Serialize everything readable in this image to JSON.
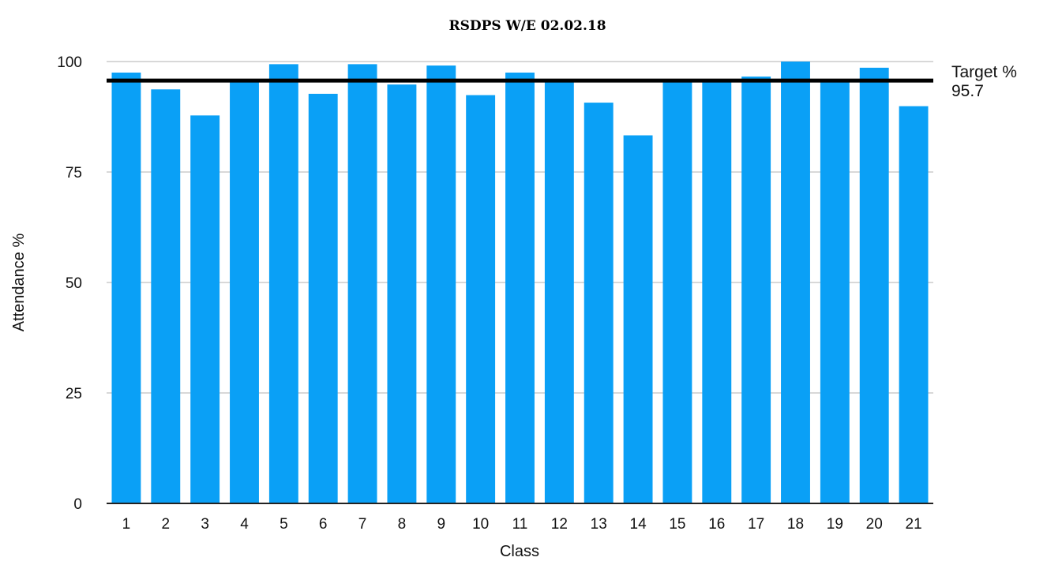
{
  "chart_data": {
    "type": "bar",
    "title": "RSDPS W/E 02.02.18",
    "xlabel": "Class",
    "ylabel": "Attendance %",
    "categories": [
      "1",
      "2",
      "3",
      "4",
      "5",
      "6",
      "7",
      "8",
      "9",
      "10",
      "11",
      "12",
      "13",
      "14",
      "15",
      "16",
      "17",
      "18",
      "19",
      "20",
      "21"
    ],
    "values": [
      97.5,
      93.7,
      87.8,
      95.7,
      99.4,
      92.7,
      99.4,
      94.8,
      99.1,
      92.4,
      97.5,
      95.7,
      90.7,
      83.3,
      95.7,
      95.7,
      96.6,
      100,
      95.7,
      98.6,
      89.9
    ],
    "ylim": [
      0,
      100
    ],
    "yticks": [
      0,
      25,
      50,
      75,
      100
    ],
    "grid": true,
    "target": {
      "label": "Target %",
      "value": 95.7,
      "value_label": "95.7"
    },
    "colors": {
      "bar": "#0aa0f6",
      "target_line": "#000000",
      "grid": "#cccccc",
      "axis": "#222222"
    }
  }
}
